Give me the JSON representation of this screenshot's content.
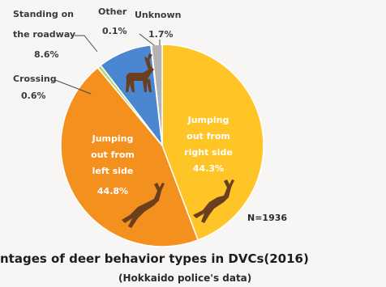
{
  "chart_data": {
    "type": "pie",
    "title": "ntages of deer behavior types in DVCs(2016)",
    "subtitle": "(Hokkaido police's data)",
    "n_label": "N=1936",
    "slices": [
      {
        "name": "Jumping out from right side",
        "value": 44.3,
        "value_label": "44.3%",
        "label_lines": [
          "Jumping",
          "out from",
          "right side"
        ],
        "color": "#ffc425"
      },
      {
        "name": "Jumping out from left side",
        "value": 44.8,
        "value_label": "44.8%",
        "label_lines": [
          "Jumping",
          "out from",
          "left side"
        ],
        "color": "#f4901e"
      },
      {
        "name": "Crossing",
        "value": 0.6,
        "value_label": "0.6%",
        "label_lines": [
          "Crossing"
        ],
        "color": "#b9d77a"
      },
      {
        "name": "Standing on the roadway",
        "value": 8.6,
        "value_label": "8.6%",
        "label_lines": [
          "Standing on",
          "the roadway"
        ],
        "color": "#4b86d0"
      },
      {
        "name": "Other",
        "value": 0.1,
        "value_label": "0.1%",
        "label_lines": [
          "Other"
        ],
        "color": "#d8d8d8"
      },
      {
        "name": "Unknown",
        "value": 1.7,
        "value_label": "1.7%",
        "label_lines": [
          "Unknown"
        ],
        "color": "#b3b3b3"
      }
    ],
    "icon_color": "#6b3e1e"
  }
}
